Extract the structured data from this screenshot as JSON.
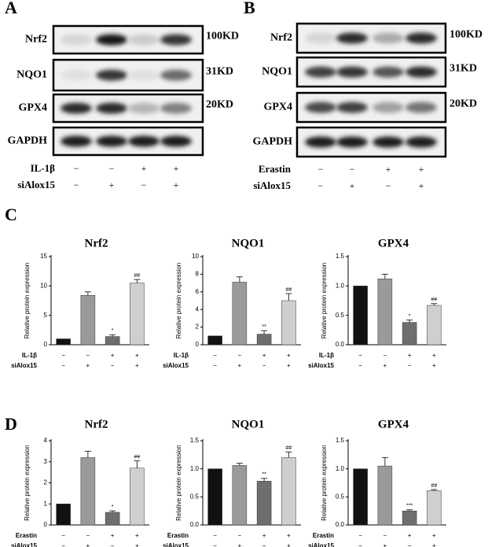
{
  "blots": [
    {
      "label": "A",
      "rows": [
        "Nrf2",
        "NQO1",
        "GPX4",
        "GAPDH"
      ],
      "sizes": [
        "100KD",
        "31KD",
        "20KD"
      ],
      "conditions": [
        {
          "name": "IL-1β",
          "signs": [
            "−",
            "−",
            "+",
            "+"
          ]
        },
        {
          "name": "siAlox15",
          "signs": [
            "−",
            "+",
            "−",
            "+"
          ]
        }
      ]
    },
    {
      "label": "B",
      "rows": [
        "Nrf2",
        "NQO1",
        "GPX4",
        "GAPDH"
      ],
      "sizes": [
        "100KD",
        "31KD",
        "20KD"
      ],
      "conditions": [
        {
          "name": "Erastin",
          "signs": [
            "−",
            "−",
            "+",
            "+"
          ]
        },
        {
          "name": "siAlox15",
          "signs": [
            "−",
            "+",
            "−",
            "+"
          ]
        }
      ]
    }
  ],
  "panel_labels": [
    "C",
    "D"
  ],
  "chart_data": [
    {
      "type": "bar",
      "title": "Nrf2",
      "ylabel": "Relative protein expression",
      "values": [
        1,
        8.4,
        1.4,
        10.5
      ],
      "errors": [
        0,
        0.6,
        0.3,
        0.6
      ],
      "colors": [
        "#111111",
        "#9a9a9a",
        "#6e6e6e",
        "#cfcfcf"
      ],
      "sig_labels": [
        null,
        null,
        "*",
        "##"
      ],
      "ylim": [
        0,
        15
      ],
      "yticks": [
        0,
        5,
        10,
        15
      ],
      "conditions": [
        {
          "name": "IL-1β",
          "signs": [
            "−",
            "−",
            "+",
            "+"
          ]
        },
        {
          "name": "siAlox15",
          "signs": [
            "−",
            "+",
            "−",
            "+"
          ]
        }
      ]
    },
    {
      "type": "bar",
      "title": "NQO1",
      "ylabel": "Relative protein expression",
      "values": [
        1,
        7.1,
        1.2,
        5.0
      ],
      "errors": [
        0,
        0.6,
        0.4,
        0.8
      ],
      "colors": [
        "#111111",
        "#9a9a9a",
        "#6e6e6e",
        "#cfcfcf"
      ],
      "sig_labels": [
        null,
        null,
        "**",
        "##"
      ],
      "ylim": [
        0,
        10
      ],
      "yticks": [
        0,
        2,
        4,
        6,
        8,
        10
      ],
      "conditions": [
        {
          "name": "IL-1β",
          "signs": [
            "−",
            "−",
            "+",
            "+"
          ]
        },
        {
          "name": "siAlox15",
          "signs": [
            "−",
            "+",
            "−",
            "+"
          ]
        }
      ]
    },
    {
      "type": "bar",
      "title": "GPX4",
      "ylabel": "Relative protein expression",
      "values": [
        1.0,
        1.12,
        0.38,
        0.67
      ],
      "errors": [
        0,
        0.08,
        0.04,
        0.03
      ],
      "colors": [
        "#111111",
        "#9a9a9a",
        "#6e6e6e",
        "#cfcfcf"
      ],
      "sig_labels": [
        null,
        null,
        "*",
        "##"
      ],
      "ylim": [
        0,
        1.5
      ],
      "yticks": [
        {
          "value": 0,
          "label": "0.0"
        },
        0.5,
        {
          "value": 1,
          "label": "1.0"
        },
        1.5
      ],
      "conditions": [
        {
          "name": "IL-1β",
          "signs": [
            "−",
            "−",
            "+",
            "+"
          ]
        },
        {
          "name": "siAlox15",
          "signs": [
            "−",
            "+",
            "−",
            "+"
          ]
        }
      ]
    },
    {
      "type": "bar",
      "title": "Nrf2",
      "ylabel": "Relative protein expression",
      "values": [
        1,
        3.2,
        0.6,
        2.7
      ],
      "errors": [
        0,
        0.3,
        0.07,
        0.35
      ],
      "colors": [
        "#111111",
        "#9a9a9a",
        "#6e6e6e",
        "#cfcfcf"
      ],
      "sig_labels": [
        null,
        null,
        "*",
        "##"
      ],
      "ylim": [
        0,
        4
      ],
      "yticks": [
        0,
        1,
        2,
        3,
        4
      ],
      "conditions": [
        {
          "name": "Erastin",
          "signs": [
            "−",
            "−",
            "+",
            "+"
          ]
        },
        {
          "name": "siAlox15",
          "signs": [
            "−",
            "+",
            "−",
            "+"
          ]
        }
      ]
    },
    {
      "type": "bar",
      "title": "NQO1",
      "ylabel": "Relative protein expression",
      "values": [
        1.0,
        1.06,
        0.78,
        1.2
      ],
      "errors": [
        0,
        0.04,
        0.05,
        0.1
      ],
      "colors": [
        "#111111",
        "#9a9a9a",
        "#6e6e6e",
        "#cfcfcf"
      ],
      "sig_labels": [
        null,
        null,
        "**",
        "##"
      ],
      "ylim": [
        0,
        1.5
      ],
      "yticks": [
        {
          "value": 0,
          "label": "0.0"
        },
        0.5,
        {
          "value": 1,
          "label": "1.0"
        },
        1.5
      ],
      "conditions": [
        {
          "name": "Erastin",
          "signs": [
            "−",
            "−",
            "+",
            "+"
          ]
        },
        {
          "name": "siAlox15",
          "signs": [
            "−",
            "+",
            "−",
            "+"
          ]
        }
      ]
    },
    {
      "type": "bar",
      "title": "GPX4",
      "ylabel": "Relative protein expression",
      "values": [
        1.0,
        1.05,
        0.25,
        0.61
      ],
      "errors": [
        0,
        0.15,
        0.02,
        0.02
      ],
      "colors": [
        "#111111",
        "#9a9a9a",
        "#6e6e6e",
        "#cfcfcf"
      ],
      "sig_labels": [
        null,
        null,
        "***",
        "##"
      ],
      "ylim": [
        0,
        1.5
      ],
      "yticks": [
        {
          "value": 0,
          "label": "0.0"
        },
        0.5,
        {
          "value": 1,
          "label": "1.0"
        },
        1.5
      ],
      "conditions": [
        {
          "name": "Erastin",
          "signs": [
            "−",
            "−",
            "+",
            "+"
          ]
        },
        {
          "name": "siAlox15",
          "signs": [
            "−",
            "+",
            "−",
            "+"
          ]
        }
      ]
    }
  ]
}
